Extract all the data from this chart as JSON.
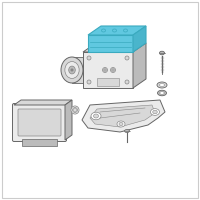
{
  "bg_color": "#ffffff",
  "border_color": "#cccccc",
  "line_color": "#666666",
  "blue_fill": "#60c8e0",
  "blue_stroke": "#3aaabf",
  "blue_dark": "#4ab5cc",
  "gray_fill": "#ebebeb",
  "gray_stroke": "#999999",
  "light_gray": "#d8d8d8",
  "mid_gray": "#bbbbbb",
  "dark_gray": "#888888",
  "white": "#ffffff"
}
